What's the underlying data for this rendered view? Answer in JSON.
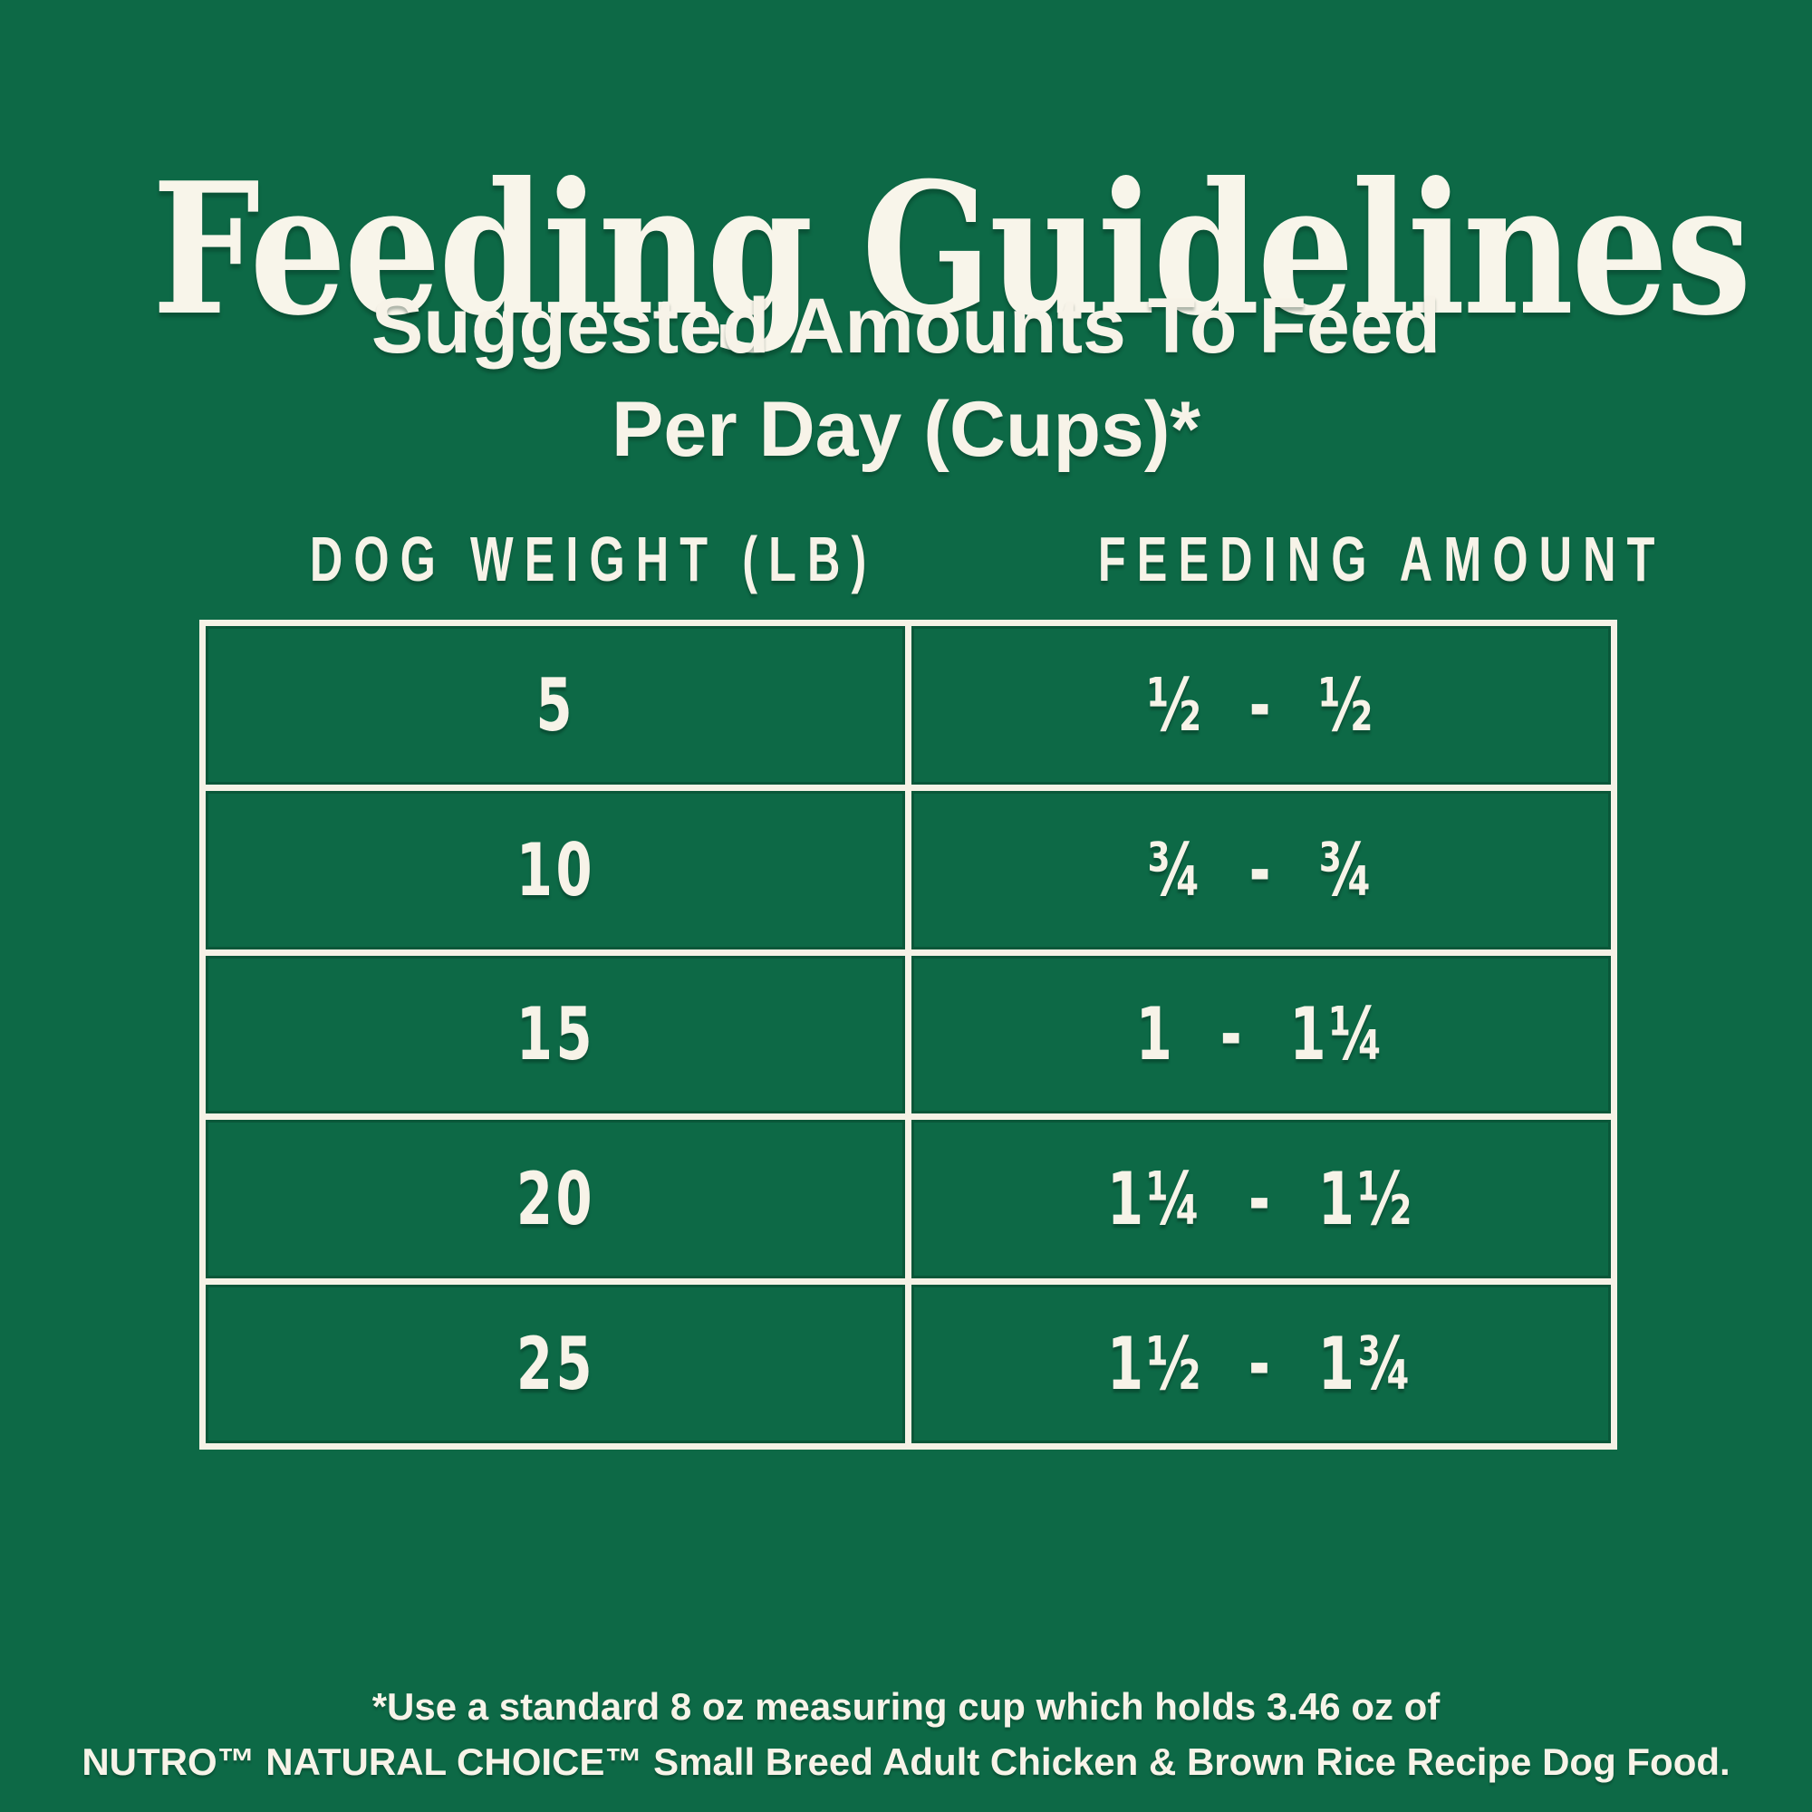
{
  "colors": {
    "background_green": "#0d6946",
    "text_cream": "#f7f3e8",
    "gridline_cream": "#f6f2e6"
  },
  "title": "Feeding Guidelines",
  "subtitle": {
    "line1": "Suggested Amounts To Feed",
    "line2": "Per Day (Cups)*"
  },
  "footnote": {
    "line1": "*Use a standard 8 oz measuring cup which holds 3.46 oz of",
    "line2": "NUTRO™ NATURAL CHOICE™ Small Breed Adult Chicken & Brown Rice Recipe Dog Food."
  },
  "chart_data": {
    "type": "table",
    "title": "Feeding Guidelines",
    "subtitle": "Suggested Amounts To Feed Per Day (Cups)*",
    "columns": [
      "DOG WEIGHT (LB)",
      "FEEDING AMOUNT"
    ],
    "rows": [
      {
        "weight": "5",
        "weight_lb": 5,
        "amount": "½ - ½",
        "min_cups": 0.5,
        "max_cups": 0.5
      },
      {
        "weight": "10",
        "weight_lb": 10,
        "amount": "¾ - ¾",
        "min_cups": 0.75,
        "max_cups": 0.75
      },
      {
        "weight": "15",
        "weight_lb": 15,
        "amount": "1 - 1¼",
        "min_cups": 1.0,
        "max_cups": 1.25
      },
      {
        "weight": "20",
        "weight_lb": 20,
        "amount": "1¼ - 1½",
        "min_cups": 1.25,
        "max_cups": 1.5
      },
      {
        "weight": "25",
        "weight_lb": 25,
        "amount": "1½ - 1¾",
        "min_cups": 1.5,
        "max_cups": 1.75
      }
    ],
    "footnote": "*Use a standard 8 oz measuring cup which holds 3.46 oz of NUTRO™ NATURAL CHOICE™ Small Breed Adult Chicken & Brown Rice Recipe Dog Food.",
    "grid": true,
    "legend_position": "none"
  }
}
